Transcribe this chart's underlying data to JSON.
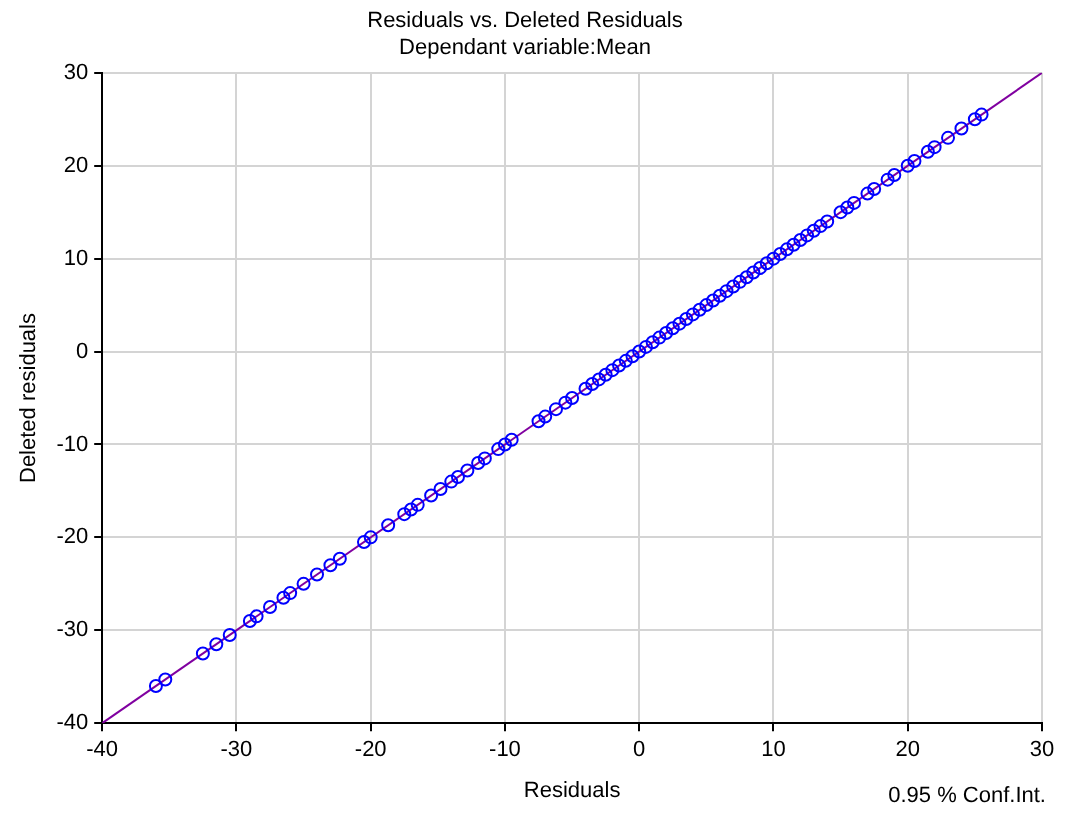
{
  "chart_data": {
    "type": "scatter",
    "title": "Residuals vs. Deleted Residuals",
    "subtitle": "Dependant variable:Mean",
    "xlabel": "Residuals",
    "ylabel": "Deleted residuals",
    "annotations": [
      "0.95 % Conf.Int."
    ],
    "series": [
      {
        "color": "#0000ff",
        "marker": "circle",
        "x": [
          -36,
          -35.3,
          -32.5,
          -31.5,
          -30.5,
          -29,
          -28.5,
          -27.5,
          -26.5,
          -26,
          -25,
          -24,
          -23,
          -22.3,
          -20.5,
          -20,
          -18.7,
          -17.5,
          -17,
          -16.5,
          -15.5,
          -14.8,
          -14,
          -13.5,
          -12.8,
          -12,
          -11.5,
          -10.5,
          -10,
          -9.5,
          -7.5,
          -7,
          -6.2,
          -5.5,
          -5,
          -4,
          -3.5,
          -3,
          -2.5,
          -2,
          -1.5,
          -1,
          -0.5,
          0,
          0.5,
          1,
          1.5,
          2,
          2.5,
          3,
          3.5,
          4,
          4.5,
          5,
          5.5,
          6,
          6.5,
          7,
          7.5,
          8,
          8.5,
          9,
          9.5,
          10,
          10.5,
          11,
          11.5,
          12,
          12.5,
          13,
          13.5,
          14,
          15,
          15.5,
          16,
          17,
          17.5,
          18.5,
          19,
          20,
          20.5,
          21.5,
          22,
          23,
          24,
          25,
          25.5
        ],
        "values": [
          -36,
          -35.3,
          -32.5,
          -31.5,
          -30.5,
          -29,
          -28.5,
          -27.5,
          -26.5,
          -26,
          -25,
          -24,
          -23,
          -22.3,
          -20.5,
          -20,
          -18.7,
          -17.5,
          -17,
          -16.5,
          -15.5,
          -14.8,
          -14,
          -13.5,
          -12.8,
          -12,
          -11.5,
          -10.5,
          -10,
          -9.5,
          -7.5,
          -7,
          -6.2,
          -5.5,
          -5,
          -4,
          -3.5,
          -3,
          -2.5,
          -2,
          -1.5,
          -1,
          -0.5,
          0,
          0.5,
          1,
          1.5,
          2,
          2.5,
          3,
          3.5,
          4,
          4.5,
          5,
          5.5,
          6,
          6.5,
          7,
          7.5,
          8,
          8.5,
          9,
          9.5,
          10,
          10.5,
          11,
          11.5,
          12,
          12.5,
          13,
          13.5,
          14,
          15,
          15.5,
          16,
          17,
          17.5,
          18.5,
          19,
          20,
          20.5,
          21.5,
          22,
          23,
          24,
          25,
          25.5
        ]
      },
      {
        "type": "line",
        "color": "#8000a0",
        "marker": "none",
        "x": [
          -40,
          30
        ],
        "values": [
          -40,
          30
        ]
      }
    ],
    "xlim": [
      -40,
      30
    ],
    "xticks": [
      -40,
      -30,
      -20,
      -10,
      0,
      10,
      20,
      30
    ],
    "ylim": [
      -40,
      30
    ],
    "yticks": [
      -40,
      -30,
      -20,
      -10,
      0,
      10,
      20,
      30
    ],
    "grid": true,
    "legend": false
  }
}
